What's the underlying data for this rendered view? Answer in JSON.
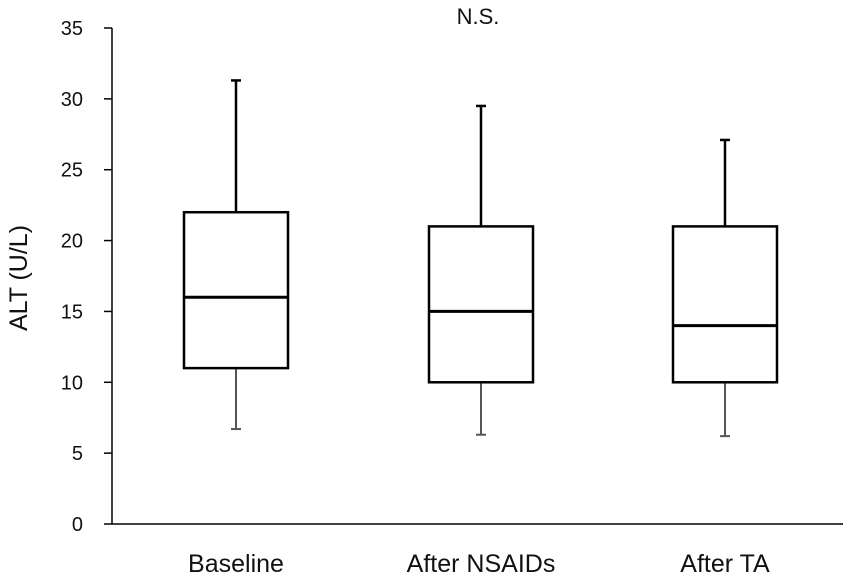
{
  "chart_data": {
    "type": "boxplot",
    "title": "",
    "annotation": "N.S.",
    "xlabel": "",
    "ylabel": "ALT (U/L)",
    "ylim": [
      0,
      35
    ],
    "yticks": [
      0,
      5,
      10,
      15,
      20,
      25,
      30,
      35
    ],
    "grid": false,
    "legend": "none",
    "categories": [
      "Baseline",
      "After NSAIDs",
      "After TA"
    ],
    "boxes": [
      {
        "category": "Baseline",
        "whisker_low": 6.7,
        "q1": 11.0,
        "median": 16.0,
        "q3": 22.0,
        "whisker_high": 31.3
      },
      {
        "category": "After NSAIDs",
        "whisker_low": 6.3,
        "q1": 10.0,
        "median": 15.0,
        "q3": 21.0,
        "whisker_high": 29.5
      },
      {
        "category": "After TA",
        "whisker_low": 6.2,
        "q1": 10.0,
        "median": 14.0,
        "q3": 21.0,
        "whisker_high": 27.1
      }
    ],
    "colors": {
      "box_stroke": "#000000",
      "upper_whisker": "#000000",
      "lower_whisker": "#555555",
      "axis": "#000000"
    }
  }
}
